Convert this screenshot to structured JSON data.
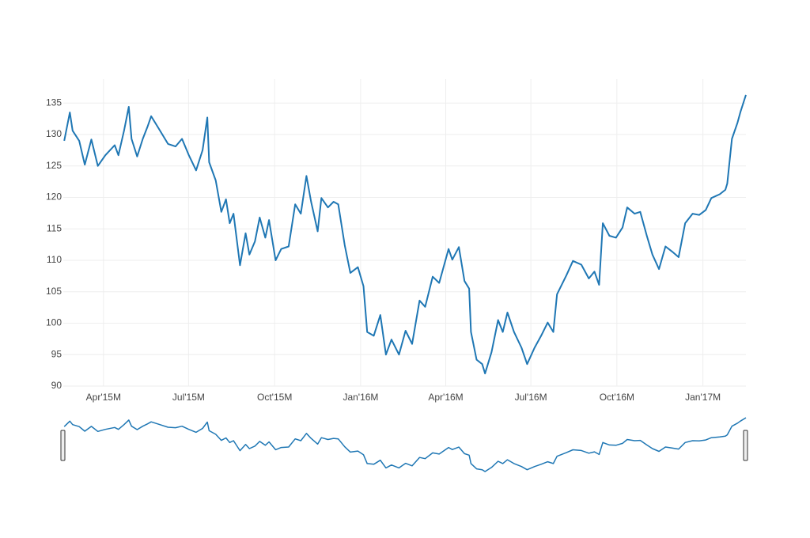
{
  "chart_data": {
    "type": "line",
    "x": [
      "2015-02-18",
      "2015-02-24",
      "2015-02-27",
      "2015-03-06",
      "2015-03-12",
      "2015-03-19",
      "2015-03-26",
      "2015-04-03",
      "2015-04-13",
      "2015-04-17",
      "2015-04-23",
      "2015-04-28",
      "2015-05-01",
      "2015-05-07",
      "2015-05-13",
      "2015-05-18",
      "2015-05-22",
      "2015-05-29",
      "2015-06-09",
      "2015-06-17",
      "2015-06-24",
      "2015-07-01",
      "2015-07-09",
      "2015-07-16",
      "2015-07-21",
      "2015-07-23",
      "2015-07-30",
      "2015-08-05",
      "2015-08-10",
      "2015-08-14",
      "2015-08-18",
      "2015-08-25",
      "2015-08-31",
      "2015-09-04",
      "2015-09-10",
      "2015-09-15",
      "2015-09-21",
      "2015-09-25",
      "2015-10-02",
      "2015-10-08",
      "2015-10-16",
      "2015-10-23",
      "2015-10-29",
      "2015-11-04",
      "2015-11-09",
      "2015-11-16",
      "2015-11-20",
      "2015-11-27",
      "2015-12-03",
      "2015-12-08",
      "2015-12-15",
      "2015-12-21",
      "2015-12-29",
      "2016-01-04",
      "2016-01-08",
      "2016-01-15",
      "2016-01-22",
      "2016-01-28",
      "2016-02-03",
      "2016-02-11",
      "2016-02-18",
      "2016-02-25",
      "2016-03-04",
      "2016-03-10",
      "2016-03-18",
      "2016-03-25",
      "2016-04-04",
      "2016-04-08",
      "2016-04-15",
      "2016-04-21",
      "2016-04-26",
      "2016-04-28",
      "2016-05-04",
      "2016-05-10",
      "2016-05-13",
      "2016-05-20",
      "2016-05-27",
      "2016-06-01",
      "2016-06-06",
      "2016-06-13",
      "2016-06-21",
      "2016-06-27",
      "2016-07-05",
      "2016-07-12",
      "2016-07-19",
      "2016-07-25",
      "2016-07-29",
      "2016-08-08",
      "2016-08-15",
      "2016-08-24",
      "2016-09-01",
      "2016-09-07",
      "2016-09-12",
      "2016-09-16",
      "2016-09-23",
      "2016-09-30",
      "2016-10-07",
      "2016-10-12",
      "2016-10-20",
      "2016-10-26",
      "2016-11-02",
      "2016-11-08",
      "2016-11-15",
      "2016-11-22",
      "2016-11-29",
      "2016-12-06",
      "2016-12-13",
      "2016-12-21",
      "2016-12-28",
      "2017-01-04",
      "2017-01-10",
      "2017-01-19",
      "2017-01-25",
      "2017-01-27",
      "2017-02-01",
      "2017-02-07",
      "2017-02-10",
      "2017-02-16"
    ],
    "series": [
      {
        "color": "#1f77b4",
        "values": [
          129,
          133.5,
          130.6,
          129,
          125.2,
          129.2,
          125,
          126.7,
          128.3,
          126.7,
          130.6,
          134.4,
          129.3,
          126.5,
          129.3,
          131.2,
          132.9,
          131.2,
          128.5,
          128.1,
          129.3,
          126.8,
          124.3,
          127.5,
          132.7,
          125.6,
          122.7,
          117.7,
          119.7,
          115.9,
          117.4,
          109.2,
          114.3,
          110.9,
          113,
          116.8,
          113.6,
          116.4,
          110,
          111.8,
          112.2,
          118.9,
          117.4,
          123.4,
          119.3,
          114.6,
          119.9,
          118.4,
          119.3,
          118.9,
          112.4,
          108,
          108.9,
          105.9,
          98.6,
          98,
          101.3,
          95,
          97.4,
          95,
          98.8,
          96.7,
          103.6,
          102.6,
          107.4,
          106.4,
          111.8,
          110.1,
          112.1,
          106.7,
          105.5,
          98.6,
          94.2,
          93.5,
          92,
          95.4,
          100.5,
          98.6,
          101.7,
          98.6,
          96.1,
          93.5,
          96.1,
          98,
          100.1,
          98.6,
          104.6,
          107.6,
          109.9,
          109.3,
          107.1,
          108.2,
          106.1,
          115.9,
          113.9,
          113.6,
          115.2,
          118.4,
          117.4,
          117.7,
          113.9,
          110.9,
          108.6,
          112.2,
          111.4,
          110.5,
          115.9,
          117.4,
          117.2,
          118,
          119.9,
          120.5,
          121.2,
          122.2,
          129.3,
          131.9,
          133.5,
          136.3
        ]
      }
    ],
    "xlim": [
      "2015-02-17",
      "2017-02-16"
    ],
    "xticks": [
      {
        "value": "2015-04-01",
        "label": "Apr'15M"
      },
      {
        "value": "2015-07-01",
        "label": "Jul'15M"
      },
      {
        "value": "2015-10-01",
        "label": "Oct'15M"
      },
      {
        "value": "2016-01-01",
        "label": "Jan'16M"
      },
      {
        "value": "2016-04-01",
        "label": "Apr'16M"
      },
      {
        "value": "2016-07-01",
        "label": "Jul'16M"
      },
      {
        "value": "2016-10-01",
        "label": "Oct'16M"
      },
      {
        "value": "2017-01-01",
        "label": "Jan'17M"
      }
    ],
    "ylim": [
      90,
      138.8
    ],
    "yticks": [
      90,
      95,
      100,
      105,
      110,
      115,
      120,
      125,
      130,
      135
    ],
    "grid": true,
    "range_slider": true
  }
}
